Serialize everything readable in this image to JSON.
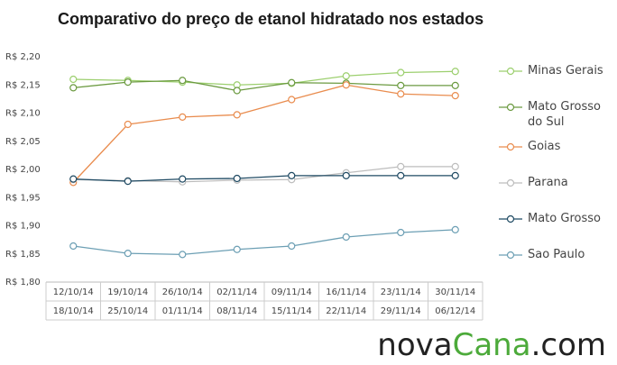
{
  "chart_data": {
    "type": "line",
    "title": "Comparativo do preço de etanol hidratado nos estados",
    "categories": [
      [
        "12/10/14",
        "18/10/14"
      ],
      [
        "19/10/14",
        "25/10/14"
      ],
      [
        "26/10/14",
        "01/11/14"
      ],
      [
        "02/11/14",
        "08/11/14"
      ],
      [
        "09/11/14",
        "15/11/14"
      ],
      [
        "16/11/14",
        "22/11/14"
      ],
      [
        "23/11/14",
        "29/11/14"
      ],
      [
        "30/11/14",
        "06/12/14"
      ]
    ],
    "ylim": [
      1.8,
      2.2
    ],
    "yticks": [
      {
        "value": 1.8,
        "label": "R$ 1,80"
      },
      {
        "value": 1.85,
        "label": "R$ 1,85"
      },
      {
        "value": 1.9,
        "label": "R$ 1,90"
      },
      {
        "value": 1.95,
        "label": "R$ 1,95"
      },
      {
        "value": 2.0,
        "label": "R$ 2,00"
      },
      {
        "value": 2.05,
        "label": "R$ 2,05"
      },
      {
        "value": 2.1,
        "label": "R$ 2,10"
      },
      {
        "value": 2.15,
        "label": "R$ 2,15"
      },
      {
        "value": 2.2,
        "label": "R$ 2,20"
      }
    ],
    "grid": false,
    "legend": "right",
    "series": [
      {
        "name": "Minas Gerais",
        "color": "#9ccf6e",
        "values": [
          2.16,
          2.158,
          2.155,
          2.15,
          2.153,
          2.166,
          2.172,
          2.174
        ]
      },
      {
        "name": "Mato Grosso do Sul",
        "color": "#6b9a40",
        "values": [
          2.145,
          2.155,
          2.158,
          2.14,
          2.154,
          2.153,
          2.149,
          2.149
        ]
      },
      {
        "name": "Goias",
        "color": "#e98c4e",
        "values": [
          1.977,
          2.08,
          2.093,
          2.097,
          2.124,
          2.15,
          2.134,
          2.131
        ]
      },
      {
        "name": "Parana",
        "color": "#bdbdbd",
        "values": [
          1.982,
          1.98,
          1.978,
          1.981,
          1.982,
          1.994,
          2.005,
          2.005
        ]
      },
      {
        "name": "Mato Grosso",
        "color": "#1f4a63",
        "values": [
          1.983,
          1.979,
          1.983,
          1.984,
          1.989,
          1.989,
          1.989,
          1.989
        ]
      },
      {
        "name": "Sao Paulo",
        "color": "#6c9fb4",
        "values": [
          1.864,
          1.851,
          1.849,
          1.858,
          1.864,
          1.88,
          1.888,
          1.893
        ]
      }
    ]
  },
  "logo": [
    "nova",
    "Cana",
    ".com"
  ]
}
